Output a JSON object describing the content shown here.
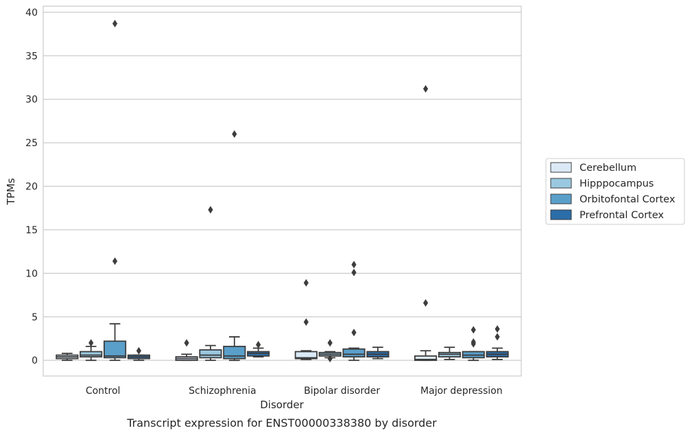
{
  "caption": "Transcript expression for ENST00000338380 by disorder",
  "chart_data": {
    "type": "box",
    "title": "",
    "xlabel": "Disorder",
    "ylabel": "TPMs",
    "ylim": [
      -1.8,
      40.7
    ],
    "yticks": [
      0,
      5,
      10,
      15,
      20,
      25,
      30,
      35,
      40
    ],
    "grid": "horizontal",
    "legend_position": "right",
    "categories": [
      "Control",
      "Schizophrenia",
      "Bipolar disorder",
      "Major depression"
    ],
    "series": [
      {
        "name": "Cerebellum",
        "color": "#dbe9f6",
        "boxes": [
          {
            "whislo": 0.0,
            "q1": 0.2,
            "med": 0.4,
            "q3": 0.6,
            "whishi": 0.8,
            "fliers": []
          },
          {
            "whislo": 0.0,
            "q1": 0.0,
            "med": 0.2,
            "q3": 0.4,
            "whishi": 0.7,
            "fliers": [
              2.0
            ]
          },
          {
            "whislo": 0.1,
            "q1": 0.2,
            "med": 0.3,
            "q3": 1.0,
            "whishi": 1.1,
            "fliers": [
              4.4,
              8.9
            ]
          },
          {
            "whislo": 0.0,
            "q1": 0.0,
            "med": 0.1,
            "q3": 0.5,
            "whishi": 1.1,
            "fliers": [
              6.6,
              31.2
            ]
          }
        ]
      },
      {
        "name": "Hipppocampus",
        "color": "#9ac8e0",
        "boxes": [
          {
            "whislo": 0.0,
            "q1": 0.4,
            "med": 0.6,
            "q3": 1.0,
            "whishi": 1.6,
            "fliers": [
              2.0
            ]
          },
          {
            "whislo": 0.0,
            "q1": 0.3,
            "med": 0.6,
            "q3": 1.2,
            "whishi": 1.7,
            "fliers": [
              17.3
            ]
          },
          {
            "whislo": 0.3,
            "q1": 0.5,
            "med": 0.7,
            "q3": 0.9,
            "whishi": 1.0,
            "fliers": [
              0.2,
              2.0
            ]
          },
          {
            "whislo": 0.1,
            "q1": 0.4,
            "med": 0.7,
            "q3": 0.9,
            "whishi": 1.5,
            "fliers": []
          }
        ]
      },
      {
        "name": "Orbitofontal Cortex",
        "color": "#5a9fca",
        "boxes": [
          {
            "whislo": 0.0,
            "q1": 0.3,
            "med": 0.5,
            "q3": 2.2,
            "whishi": 4.2,
            "fliers": [
              11.4,
              38.7
            ]
          },
          {
            "whislo": 0.0,
            "q1": 0.2,
            "med": 0.5,
            "q3": 1.6,
            "whishi": 2.7,
            "fliers": [
              26.0
            ]
          },
          {
            "whislo": 0.0,
            "q1": 0.4,
            "med": 0.7,
            "q3": 1.3,
            "whishi": 1.4,
            "fliers": [
              3.2,
              10.1,
              11.0
            ]
          },
          {
            "whislo": 0.0,
            "q1": 0.3,
            "med": 0.6,
            "q3": 1.0,
            "whishi": 1.0,
            "fliers": [
              1.9,
              2.1,
              3.5
            ]
          }
        ]
      },
      {
        "name": "Prefrontal Cortex",
        "color": "#2b6da8",
        "boxes": [
          {
            "whislo": 0.0,
            "q1": 0.2,
            "med": 0.4,
            "q3": 0.6,
            "whishi": 0.6,
            "fliers": [
              1.1
            ]
          },
          {
            "whislo": 0.4,
            "q1": 0.5,
            "med": 0.8,
            "q3": 1.0,
            "whishi": 1.4,
            "fliers": [
              1.8
            ]
          },
          {
            "whislo": 0.2,
            "q1": 0.4,
            "med": 0.7,
            "q3": 1.0,
            "whishi": 1.5,
            "fliers": []
          },
          {
            "whislo": 0.1,
            "q1": 0.4,
            "med": 0.7,
            "q3": 1.0,
            "whishi": 1.4,
            "fliers": [
              2.7,
              3.6
            ]
          }
        ]
      }
    ]
  }
}
